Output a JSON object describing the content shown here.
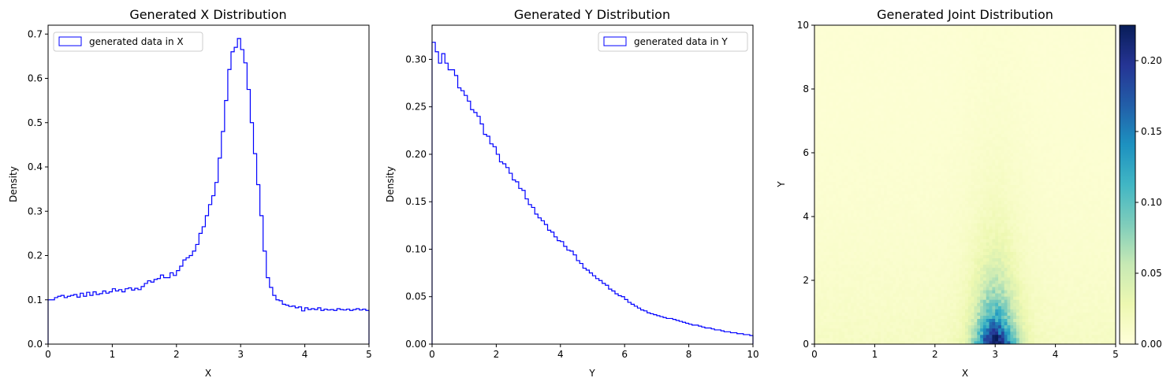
{
  "colors": {
    "step": "#0000ff",
    "colormap": [
      "#ffffd9",
      "#edf8b1",
      "#c7e9b4",
      "#7fcdbb",
      "#41b6c4",
      "#1d91c0",
      "#225ea8",
      "#253494",
      "#081d58"
    ]
  },
  "chart_data": [
    {
      "type": "histogram-step",
      "title": "Generated X Distribution",
      "xlabel": "X",
      "ylabel": "Density",
      "xlim": [
        0,
        5
      ],
      "ylim": [
        0,
        0.72
      ],
      "xticks": [
        "0",
        "1",
        "2",
        "3",
        "4",
        "5"
      ],
      "yticks": [
        "0.0",
        "0.1",
        "0.2",
        "0.3",
        "0.4",
        "0.5",
        "0.6",
        "0.7"
      ],
      "legend": {
        "label": "generated data in X",
        "loc": "upper-left"
      },
      "bin_edges_range": [
        0,
        5
      ],
      "values": [
        0.1,
        0.1,
        0.105,
        0.108,
        0.11,
        0.105,
        0.108,
        0.11,
        0.112,
        0.106,
        0.115,
        0.108,
        0.117,
        0.11,
        0.118,
        0.112,
        0.114,
        0.12,
        0.115,
        0.118,
        0.125,
        0.12,
        0.123,
        0.118,
        0.125,
        0.127,
        0.122,
        0.126,
        0.123,
        0.13,
        0.137,
        0.143,
        0.14,
        0.146,
        0.148,
        0.156,
        0.15,
        0.15,
        0.161,
        0.155,
        0.166,
        0.176,
        0.19,
        0.195,
        0.2,
        0.21,
        0.225,
        0.25,
        0.265,
        0.29,
        0.315,
        0.335,
        0.365,
        0.42,
        0.48,
        0.55,
        0.62,
        0.66,
        0.67,
        0.69,
        0.665,
        0.635,
        0.575,
        0.5,
        0.43,
        0.36,
        0.29,
        0.21,
        0.15,
        0.128,
        0.11,
        0.1,
        0.098,
        0.09,
        0.088,
        0.085,
        0.086,
        0.082,
        0.084,
        0.075,
        0.082,
        0.078,
        0.08,
        0.078,
        0.082,
        0.076,
        0.079,
        0.077,
        0.078,
        0.076,
        0.08,
        0.078,
        0.077,
        0.079,
        0.076,
        0.078,
        0.08,
        0.077,
        0.079,
        0.076
      ]
    },
    {
      "type": "histogram-step",
      "title": "Generated Y Distribution",
      "xlabel": "Y",
      "ylabel": "Density",
      "xlim": [
        0,
        10
      ],
      "ylim": [
        0,
        0.336
      ],
      "xticks": [
        "0",
        "2",
        "4",
        "6",
        "8",
        "10"
      ],
      "yticks": [
        "0.00",
        "0.05",
        "0.10",
        "0.15",
        "0.20",
        "0.25",
        "0.30"
      ],
      "legend": {
        "label": "generated data in Y",
        "loc": "upper-right"
      },
      "bin_edges_range": [
        0,
        10
      ],
      "values": [
        0.318,
        0.308,
        0.296,
        0.306,
        0.296,
        0.289,
        0.289,
        0.283,
        0.27,
        0.267,
        0.262,
        0.256,
        0.247,
        0.244,
        0.24,
        0.232,
        0.221,
        0.219,
        0.211,
        0.208,
        0.2,
        0.192,
        0.19,
        0.186,
        0.18,
        0.173,
        0.171,
        0.164,
        0.162,
        0.153,
        0.147,
        0.144,
        0.137,
        0.133,
        0.13,
        0.126,
        0.12,
        0.118,
        0.113,
        0.109,
        0.108,
        0.103,
        0.099,
        0.098,
        0.094,
        0.088,
        0.085,
        0.08,
        0.078,
        0.075,
        0.072,
        0.069,
        0.067,
        0.064,
        0.062,
        0.058,
        0.056,
        0.053,
        0.051,
        0.05,
        0.047,
        0.044,
        0.042,
        0.04,
        0.038,
        0.036,
        0.035,
        0.033,
        0.032,
        0.031,
        0.03,
        0.029,
        0.028,
        0.027,
        0.027,
        0.026,
        0.025,
        0.024,
        0.023,
        0.022,
        0.021,
        0.02,
        0.02,
        0.019,
        0.018,
        0.017,
        0.017,
        0.016,
        0.015,
        0.015,
        0.014,
        0.013,
        0.013,
        0.012,
        0.012,
        0.011,
        0.011,
        0.01,
        0.01,
        0.009
      ]
    },
    {
      "type": "heatmap",
      "title": "Generated Joint Distribution",
      "xlabel": "X",
      "ylabel": "Y",
      "xlim": [
        0,
        5
      ],
      "ylim": [
        0,
        10
      ],
      "xticks": [
        "0",
        "1",
        "2",
        "3",
        "4",
        "5"
      ],
      "yticks": [
        "0",
        "2",
        "4",
        "6",
        "8",
        "10"
      ],
      "colorbar": {
        "range": [
          0,
          0.225
        ],
        "ticks": [
          "0.00",
          "0.05",
          "0.10",
          "0.15",
          "0.20"
        ]
      },
      "grid": {
        "x_bins": 100,
        "y_bins": 100
      },
      "model": "density concentrated near X=3, decaying with Y; peak ~0.22 at X≈3, Y≈0"
    }
  ]
}
